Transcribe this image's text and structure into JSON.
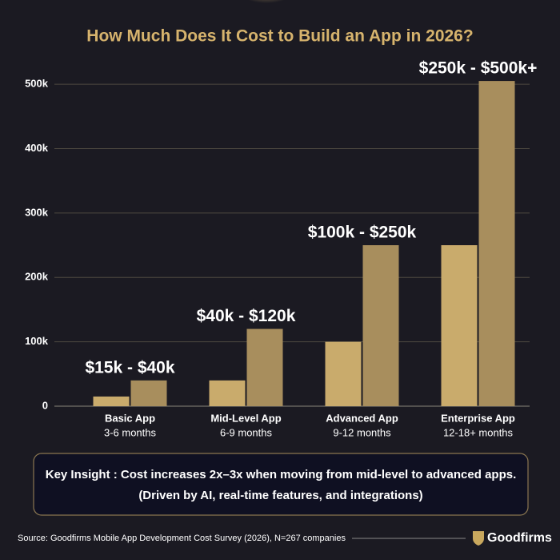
{
  "chart_data": {
    "type": "bar",
    "title": "How Much Does It Cost to Build an App in 2026?",
    "categories": [
      "Basic App",
      "Mid-Level App",
      "Advanced App",
      "Enterprise App"
    ],
    "subcategories": [
      "3-6 months",
      "6-9 months",
      "9-12 months",
      "12-18+ months"
    ],
    "series": [
      {
        "color": "#c9ab6c",
        "values": [
          15000,
          40000,
          100000,
          250000
        ]
      },
      {
        "color": "#a88e5d",
        "values": [
          40000,
          120000,
          250000,
          505000
        ]
      }
    ],
    "range_labels": [
      "$15k - $40k",
      "$40k - $120k",
      "$100k - $250k",
      "$250k - $500k+"
    ],
    "ylim": [
      0,
      530000
    ],
    "yticks": [
      0,
      {
        "value": 100000,
        "label": "100k"
      },
      {
        "value": 200000,
        "label": "200k"
      },
      {
        "value": 300000,
        "label": "300k"
      },
      {
        "value": 400000,
        "label": "400k"
      },
      {
        "value": 500000,
        "label": "500k"
      }
    ],
    "grid": true,
    "key_insight": [
      "Key Insight : Cost increases 2x–3x when moving from mid-level to advanced apps.",
      "(Driven by AI, real-time features, and integrations)"
    ],
    "source": "Source: Goodfirms Mobile App Development Cost Survey (2026), N=267 companies",
    "brand": "Goodfirms"
  }
}
